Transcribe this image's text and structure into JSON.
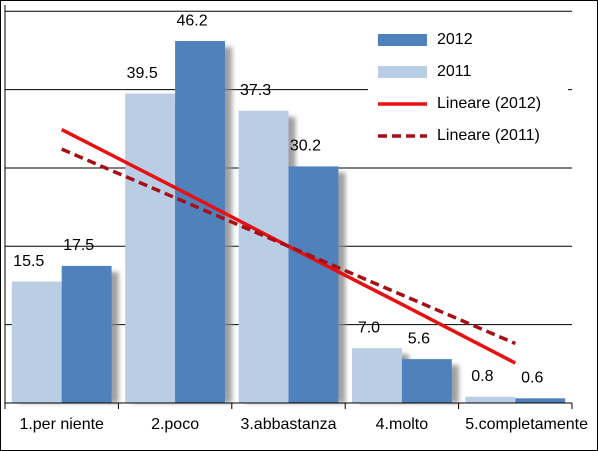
{
  "chart_data": {
    "type": "bar",
    "categories": [
      "1.per niente",
      "2.poco",
      "3.abbastanza",
      "4.molto",
      "5.completamente"
    ],
    "series": [
      {
        "name": "2011",
        "color": "#b9cde5",
        "values": [
          15.5,
          39.5,
          37.3,
          7.0,
          0.8
        ],
        "value_labels": [
          "15.5",
          "39.5",
          "37.3",
          "7.0",
          "0.8"
        ]
      },
      {
        "name": "2012",
        "color": "#4f81bd",
        "values": [
          17.5,
          46.2,
          30.2,
          5.6,
          0.6
        ]
      },
      {
        "name": "Lineare (2012)",
        "type": "line",
        "color": "#e81010",
        "dashed": false,
        "values": [
          34.9,
          27.5,
          20.0,
          12.6,
          5.1
        ]
      },
      {
        "name": "Lineare (2011)",
        "type": "line",
        "color": "#a50f15",
        "dashed": true,
        "values": [
          32.4,
          26.2,
          20.0,
          13.8,
          7.6
        ]
      }
    ],
    "legend_order": [
      1,
      0,
      2,
      3
    ],
    "ylim": [
      0,
      50.8
    ],
    "yticks": [
      10,
      20,
      30,
      40,
      50
    ],
    "grid": true
  }
}
